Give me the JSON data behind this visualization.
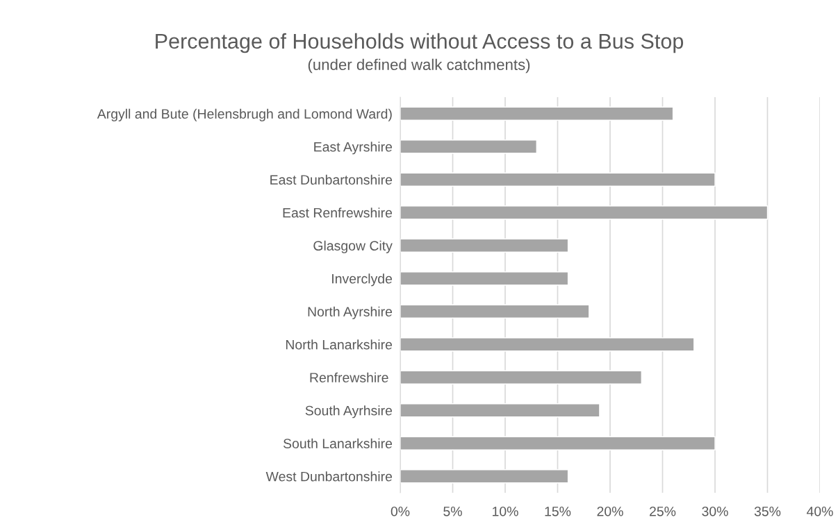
{
  "chart_data": {
    "type": "bar",
    "orientation": "horizontal",
    "title": "Percentage of Households without Access to a Bus Stop",
    "subtitle": "(under defined walk catchments)",
    "categories": [
      "Argyll and Bute (Helensbrugh and Lomond Ward)",
      "East Ayrshire",
      "East Dunbartonshire",
      "East Renfrewshire",
      "Glasgow City",
      "Inverclyde",
      "North Ayrshire",
      "North Lanarkshire",
      "Renfrewshire ",
      "South Ayrhsire",
      "South Lanarkshire",
      "West Dunbartonshire"
    ],
    "values": [
      26,
      13,
      30,
      35,
      16,
      16,
      18,
      28,
      23,
      19,
      30,
      16
    ],
    "color": "#a5a5a5",
    "xlim": [
      0,
      40
    ],
    "xticks": [
      {
        "value": 0,
        "label": "0%"
      },
      {
        "value": 5,
        "label": "5%"
      },
      {
        "value": 10,
        "label": "10%"
      },
      {
        "value": 15,
        "label": "15%"
      },
      {
        "value": 20,
        "label": "20%"
      },
      {
        "value": 25,
        "label": "25%"
      },
      {
        "value": 30,
        "label": "30%"
      },
      {
        "value": 35,
        "label": "35%"
      },
      {
        "value": 40,
        "label": "40%"
      }
    ],
    "grid": "x"
  }
}
